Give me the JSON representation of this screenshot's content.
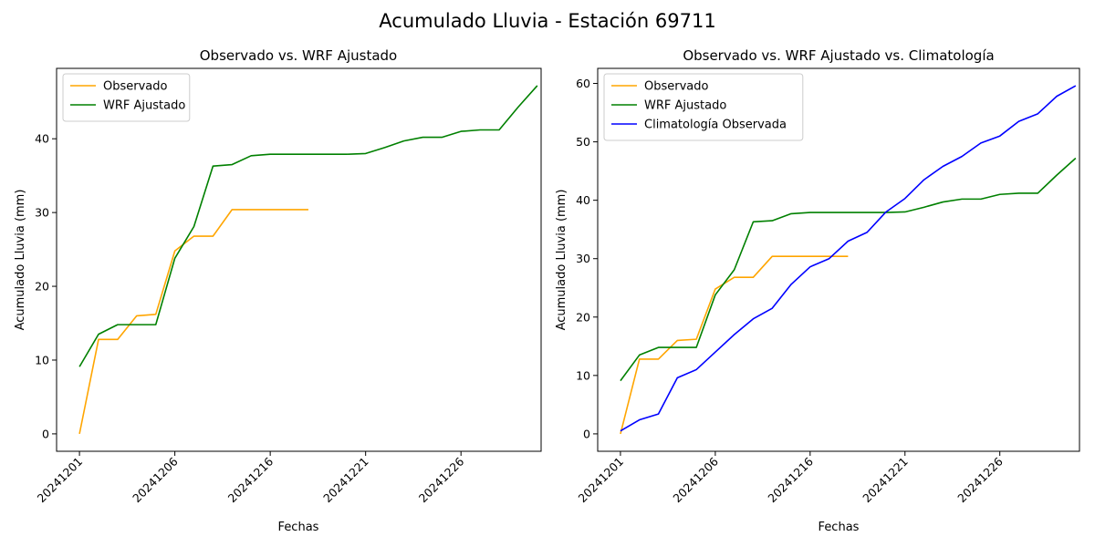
{
  "figure": {
    "title": "Acumulado Lluvia - Estación 69711"
  },
  "colors": {
    "observado": "#ffa500",
    "wrf": "#008000",
    "climatologia": "#0000ff"
  },
  "chart_data": [
    {
      "type": "line",
      "title": "Observado vs. WRF Ajustado",
      "xlabel": "Fechas",
      "ylabel": "Acumulado Lluvia (mm)",
      "xlim": [
        -1.2,
        24.2
      ],
      "ylim": [
        -2.36,
        49.54
      ],
      "yticks": [
        0,
        10,
        20,
        30,
        40
      ],
      "xticks": [
        0,
        5,
        10,
        15,
        20
      ],
      "xtick_labels": [
        "20241201",
        "20241206",
        "20241216",
        "20241221",
        "20241226"
      ],
      "legend_position": "upper-left",
      "series": [
        {
          "name": "Observado",
          "color_key": "observado",
          "values": [
            0,
            12.8,
            12.8,
            16.0,
            16.2,
            24.8,
            26.8,
            26.8,
            30.4,
            30.4,
            30.4,
            30.4,
            30.4
          ]
        },
        {
          "name": "WRF Ajustado",
          "color_key": "wrf",
          "values": [
            9.1,
            13.5,
            14.8,
            14.8,
            14.8,
            23.8,
            28.1,
            36.3,
            36.5,
            37.7,
            37.9,
            37.9,
            37.9,
            37.9,
            37.9,
            38.0,
            38.8,
            39.7,
            40.2,
            40.2,
            41.0,
            41.2,
            41.2,
            44.3,
            47.2
          ]
        }
      ]
    },
    {
      "type": "line",
      "title": "Observado vs. WRF Ajustado vs. Climatología",
      "xlabel": "Fechas",
      "ylabel": "Acumulado Lluvia (mm)",
      "xlim": [
        -1.2,
        24.2
      ],
      "ylim": [
        -2.98,
        62.58
      ],
      "yticks": [
        0,
        10,
        20,
        30,
        40,
        50,
        60
      ],
      "xticks": [
        0,
        5,
        10,
        15,
        20
      ],
      "xtick_labels": [
        "20241201",
        "20241206",
        "20241216",
        "20241221",
        "20241226"
      ],
      "legend_position": "upper-left",
      "series": [
        {
          "name": "Observado",
          "color_key": "observado",
          "values": [
            0,
            12.8,
            12.8,
            16.0,
            16.2,
            24.8,
            26.8,
            26.8,
            30.4,
            30.4,
            30.4,
            30.4,
            30.4
          ]
        },
        {
          "name": "WRF Ajustado",
          "color_key": "wrf",
          "values": [
            9.1,
            13.5,
            14.8,
            14.8,
            14.8,
            23.8,
            28.1,
            36.3,
            36.5,
            37.7,
            37.9,
            37.9,
            37.9,
            37.9,
            37.9,
            38.0,
            38.8,
            39.7,
            40.2,
            40.2,
            41.0,
            41.2,
            41.2,
            44.3,
            47.2
          ]
        },
        {
          "name": "Climatología Observada",
          "color_key": "climatologia",
          "values": [
            0.5,
            2.4,
            3.4,
            9.6,
            11.0,
            14.0,
            17.0,
            19.7,
            21.5,
            25.6,
            28.6,
            30.0,
            33.0,
            34.5,
            38.0,
            40.3,
            43.5,
            45.8,
            47.5,
            49.8,
            51.0,
            53.5,
            54.8,
            57.8,
            59.6
          ]
        }
      ]
    }
  ]
}
